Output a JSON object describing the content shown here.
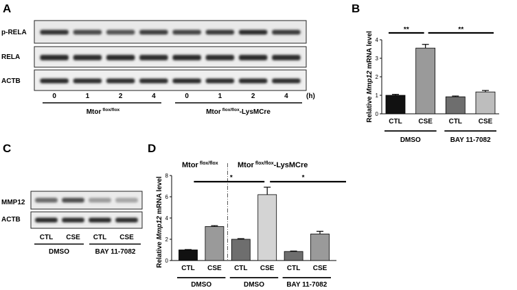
{
  "panel_letters": {
    "A": "A",
    "B": "B",
    "C": "C",
    "D": "D"
  },
  "panel_a": {
    "rows": [
      "p-RELA",
      "RELA",
      "ACTB"
    ],
    "times": [
      "0",
      "1",
      "2",
      "4",
      "0",
      "1",
      "2",
      "4"
    ],
    "time_unit": "(h)",
    "groups": [
      {
        "name": "Mtor",
        "sup": "flox/flox",
        "suffix": ""
      },
      {
        "name": "Mtor",
        "sup": "flox/flox",
        "suffix": "-LysMCre"
      }
    ]
  },
  "panel_c": {
    "rows": [
      "MMP12",
      "ACTB"
    ],
    "lanes": [
      "CTL",
      "CSE",
      "CTL",
      "CSE"
    ],
    "treatments": [
      "DMSO",
      "BAY 11-7082"
    ]
  },
  "chart_data": [
    {
      "id": "B",
      "type": "bar",
      "ylabel": {
        "pre": "Relative ",
        "gene": "Mmp12",
        "post": " mRNA level"
      },
      "ylim": [
        0,
        4
      ],
      "yticks": [
        0,
        1,
        2,
        3,
        4
      ],
      "categories": [
        "CTL",
        "CSE",
        "CTL",
        "CSE"
      ],
      "values": [
        1.0,
        3.55,
        0.92,
        1.18
      ],
      "errors": [
        0.05,
        0.2,
        0.04,
        0.08
      ],
      "colors": [
        "#111111",
        "#9a9a9a",
        "#6e6e6e",
        "#bdbdbd"
      ],
      "treatments": [
        "DMSO",
        "BAY 11-7082"
      ],
      "significance": [
        {
          "from": 0,
          "to": 1,
          "label": "**"
        },
        {
          "from": 1,
          "to": 3,
          "label": "**"
        }
      ]
    },
    {
      "id": "D",
      "type": "bar",
      "ylabel": {
        "pre": "Relative ",
        "gene": "Mmp12",
        "post": " mRNA level"
      },
      "ylim": [
        0,
        8
      ],
      "yticks": [
        0,
        2,
        4,
        6,
        8
      ],
      "categories": [
        "CTL",
        "CSE",
        "CTL",
        "CSE",
        "CTL",
        "CSE"
      ],
      "values": [
        1.0,
        3.2,
        2.0,
        6.2,
        0.85,
        2.5
      ],
      "errors": [
        0.03,
        0.08,
        0.06,
        0.7,
        0.04,
        0.25
      ],
      "colors": [
        "#111111",
        "#9a9a9a",
        "#6e6e6e",
        "#d4d4d4",
        "#6e6e6e",
        "#9a9a9a"
      ],
      "treatments": [
        "DMSO",
        "DMSO",
        "BAY 11-7082"
      ],
      "genotypes": [
        {
          "name": "Mtor",
          "sup": "flox/flox",
          "suffix": ""
        },
        {
          "name": "Mtor",
          "sup": "flox/flox",
          "suffix": "-LysMCre"
        }
      ],
      "significance": [
        {
          "from": 1,
          "to": 3,
          "label": "*"
        },
        {
          "from": 3,
          "to": 5,
          "label": "*"
        }
      ]
    }
  ]
}
